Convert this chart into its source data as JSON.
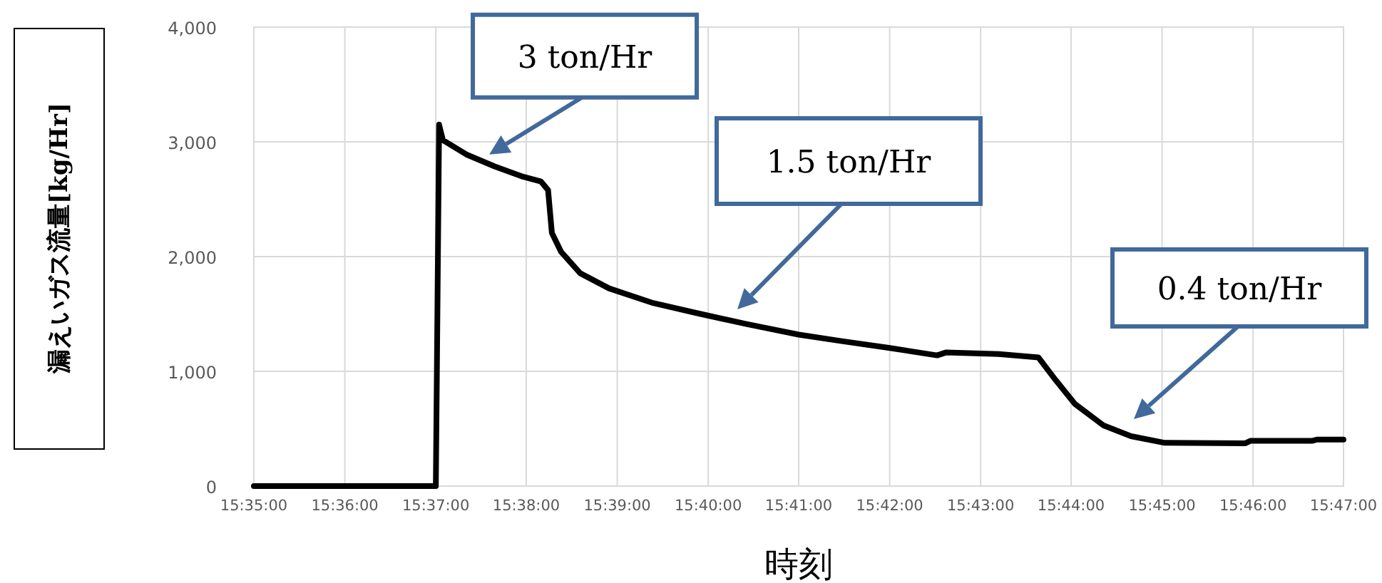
{
  "chart_data": {
    "type": "line",
    "xlabel": "時刻",
    "ylabel": "漏えいガス流量[kg/Hr]",
    "x": [
      15.5833,
      15.6167,
      15.6173,
      15.618,
      15.6223,
      15.6275,
      15.6327,
      15.636,
      15.6373,
      15.638,
      15.6397,
      15.6432,
      15.6485,
      15.6563,
      15.665,
      15.6737,
      15.6833,
      15.6912,
      15.6998,
      15.7087,
      15.7103,
      15.72,
      15.7273,
      15.7305,
      15.734,
      15.7392,
      15.7443,
      15.7505,
      15.7653,
      15.7662,
      15.7775,
      15.7785,
      15.7833
    ],
    "series": [
      {
        "color": "#000000",
        "values": [
          0,
          0,
          3150,
          3015,
          2890,
          2786,
          2696,
          2654,
          2580,
          2207,
          2041,
          1855,
          1723,
          1599,
          1503,
          1412,
          1320,
          1263,
          1205,
          1139,
          1164,
          1151,
          1121,
          922,
          716,
          530,
          435,
          377,
          373,
          394,
          394,
          406,
          406
        ]
      }
    ],
    "xlim": [
      15.5833,
      15.7833
    ],
    "xticks": [
      {
        "value": 15.5833,
        "label": "15:35:00"
      },
      {
        "value": 15.6,
        "label": "15:36:00"
      },
      {
        "value": 15.6167,
        "label": "15:37:00"
      },
      {
        "value": 15.6333,
        "label": "15:38:00"
      },
      {
        "value": 15.65,
        "label": "15:39:00"
      },
      {
        "value": 15.6667,
        "label": "15:40:00"
      },
      {
        "value": 15.6833,
        "label": "15:41:00"
      },
      {
        "value": 15.7,
        "label": "15:42:00"
      },
      {
        "value": 15.7167,
        "label": "15:43:00"
      },
      {
        "value": 15.7333,
        "label": "15:44:00"
      },
      {
        "value": 15.75,
        "label": "15:45:00"
      },
      {
        "value": 15.7667,
        "label": "15:46:00"
      },
      {
        "value": 15.7833,
        "label": "15:47:00"
      }
    ],
    "ylim": [
      0,
      4000
    ],
    "yticks": [
      {
        "value": 0,
        "label": "0"
      },
      {
        "value": 1000,
        "label": "1,000"
      },
      {
        "value": 2000,
        "label": "2,000"
      },
      {
        "value": 3000,
        "label": "3,000"
      },
      {
        "value": 4000,
        "label": "4,000"
      }
    ],
    "grid": true,
    "marker": "none",
    "line_style": "solid",
    "annotations": [
      {
        "text": "3 ton/Hr",
        "x": 15.6265,
        "y": 2890
      },
      "1.5 ton/Hr",
      "0.4 ton/Hr"
    ]
  }
}
